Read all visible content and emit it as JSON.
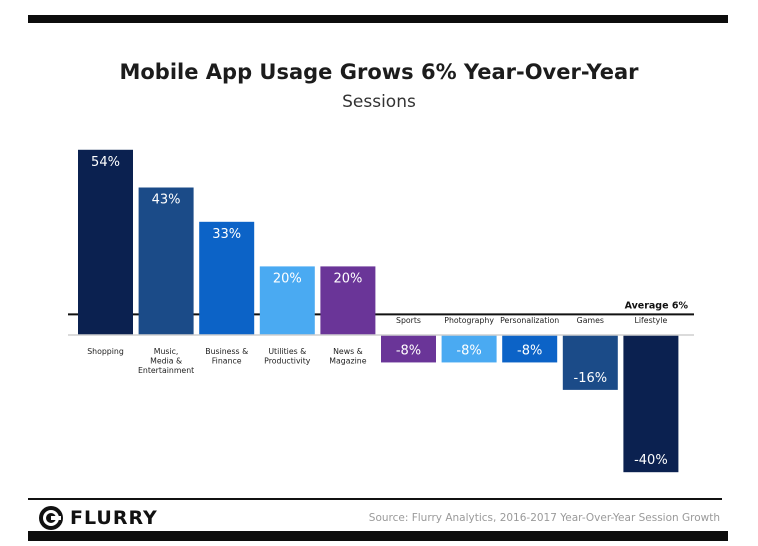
{
  "title": "Mobile App Usage Grows 6% Year-Over-Year",
  "subtitle": "Sessions",
  "average_label": "Average 6%",
  "brand": {
    "name": "FLURRY",
    "icon": "flurry-logo-icon"
  },
  "source": "Source: Flurry Analytics, 2016-2017 Year-Over-Year Session Growth",
  "chart_data": {
    "type": "bar",
    "title": "Mobile App Usage Grows 6% Year-Over-Year",
    "subtitle": "Sessions",
    "categories": [
      "Shopping",
      "Music, Media & Entertainment",
      "Business & Finance",
      "Utilities & Productivity",
      "News & Magazine",
      "Sports",
      "Photography",
      "Personalization",
      "Games",
      "Lifestyle"
    ],
    "category_label_lines": [
      [
        "Shopping"
      ],
      [
        "Music,",
        "Media &",
        "Entertainment"
      ],
      [
        "Business &",
        "Finance"
      ],
      [
        "Utilities &",
        "Productivity"
      ],
      [
        "News &",
        "Magazine"
      ],
      [
        "Sports"
      ],
      [
        "Photography"
      ],
      [
        "Personalization"
      ],
      [
        "Games"
      ],
      [
        "Lifestyle"
      ]
    ],
    "values": [
      54,
      43,
      33,
      20,
      20,
      -8,
      -8,
      -8,
      -16,
      -40
    ],
    "value_labels": [
      "54%",
      "43%",
      "33%",
      "20%",
      "20%",
      "-8%",
      "-8%",
      "-8%",
      "-16%",
      "-40%"
    ],
    "colors": [
      "#0b2150",
      "#1b4b88",
      "#0c63c7",
      "#4aaaf2",
      "#6a3598",
      "#6a3598",
      "#4aaaf2",
      "#0c63c7",
      "#1b4b88",
      "#0b2150"
    ],
    "average": 6,
    "average_label": "Average 6%",
    "unit": "%",
    "xlabel": "",
    "ylabel": "",
    "ylim": [
      -40,
      54
    ],
    "grid": false,
    "legend": "none"
  }
}
